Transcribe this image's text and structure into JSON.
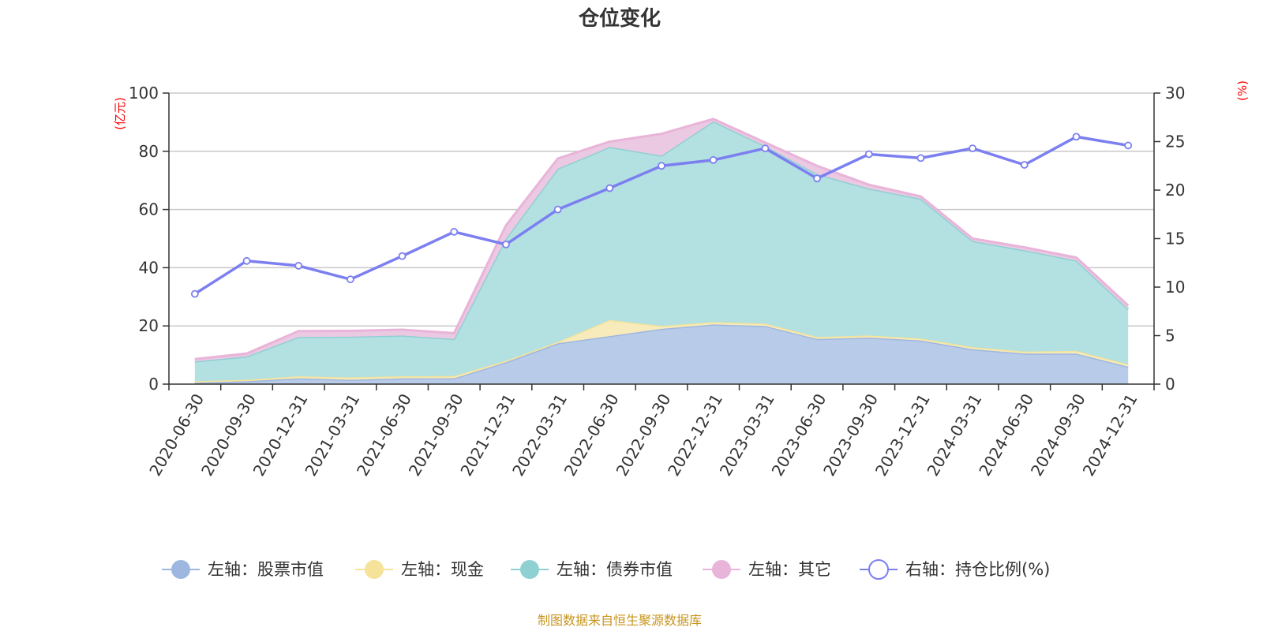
{
  "chart_data": {
    "type": "area",
    "title": "仓位变化",
    "left_unit": "(亿元)",
    "right_unit": "(%)",
    "categories": [
      "2020-06-30",
      "2020-09-30",
      "2020-12-31",
      "2021-03-31",
      "2021-06-30",
      "2021-09-30",
      "2021-12-31",
      "2022-03-31",
      "2022-06-30",
      "2022-09-30",
      "2022-12-31",
      "2023-03-31",
      "2023-06-30",
      "2023-09-30",
      "2023-12-31",
      "2024-03-31",
      "2024-06-30",
      "2024-09-30",
      "2024-12-31"
    ],
    "left_axis": {
      "min": 0,
      "max": 100,
      "ticks": [
        0,
        20,
        40,
        60,
        80,
        100
      ]
    },
    "right_axis": {
      "min": 0,
      "max": 30,
      "ticks": [
        0,
        5,
        10,
        15,
        20,
        25,
        30
      ]
    },
    "grid": true,
    "legend_position": "bottom",
    "series": [
      {
        "name": "左轴：股票市值",
        "axis": "left",
        "kind": "stacked-area",
        "color": "#9eb7e0",
        "fill": "#b8cbe9",
        "values": [
          0.5,
          1.0,
          2.0,
          1.5,
          2.0,
          2.0,
          7.5,
          14.0,
          16.5,
          19.0,
          20.5,
          20.0,
          15.5,
          16.0,
          15.0,
          12.0,
          10.5,
          10.5,
          6.0
        ]
      },
      {
        "name": "左轴：现金",
        "axis": "left",
        "kind": "stacked-area",
        "color": "#f5e39a",
        "fill": "#f7ebbb",
        "values": [
          0.5,
          0.5,
          0.7,
          0.8,
          0.7,
          0.8,
          0.5,
          0.5,
          5.5,
          1.0,
          0.8,
          0.8,
          0.7,
          0.7,
          0.7,
          0.7,
          0.7,
          0.9,
          0.8
        ]
      },
      {
        "name": "左轴：债券市值",
        "axis": "left",
        "kind": "stacked-area",
        "color": "#8fd0d3",
        "fill": "#b3e0e1",
        "values": [
          6.8,
          8.0,
          13.5,
          14.0,
          14.0,
          12.7,
          42.0,
          59.5,
          59.5,
          58.5,
          69.0,
          61.0,
          56.0,
          50.5,
          48.0,
          36.5,
          34.8,
          31.1,
          19.0
        ]
      },
      {
        "name": "左轴：其它",
        "axis": "left",
        "kind": "stacked-area",
        "color": "#e8b4d9",
        "fill": "#ecc9e2",
        "values": [
          0.8,
          1.0,
          2.0,
          2.0,
          2.0,
          2.0,
          4.5,
          3.5,
          1.8,
          7.5,
          0.8,
          1.2,
          2.8,
          1.3,
          0.8,
          0.8,
          1.0,
          1.0,
          1.2
        ]
      },
      {
        "name": "右轴：持仓比例(%)",
        "axis": "right",
        "kind": "line",
        "color": "#7b7ff0",
        "values": [
          9.3,
          12.7,
          12.2,
          10.8,
          13.2,
          15.7,
          14.4,
          18.0,
          20.2,
          22.5,
          23.1,
          24.3,
          21.2,
          23.7,
          23.3,
          24.3,
          22.6,
          25.5,
          24.6
        ]
      }
    ]
  },
  "footer": "制图数据来自恒生聚源数据库"
}
